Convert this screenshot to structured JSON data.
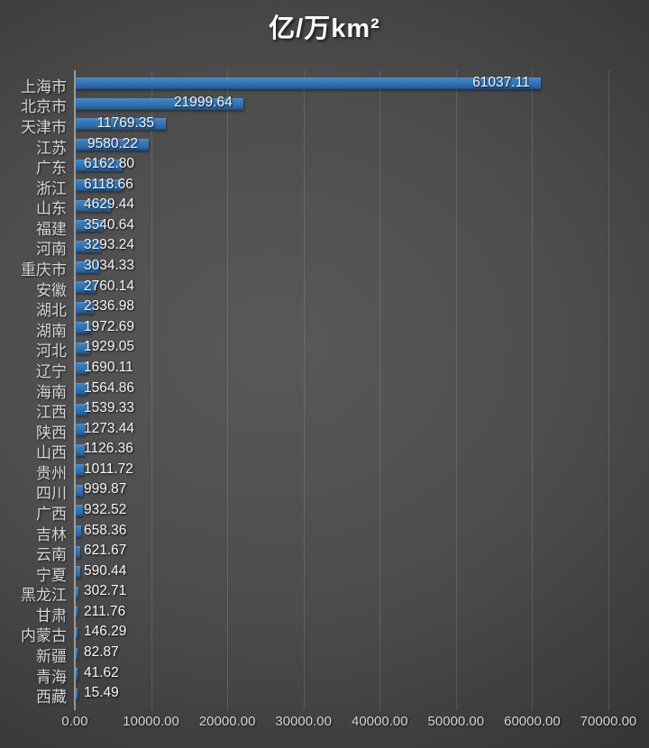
{
  "chart_data": {
    "type": "bar",
    "orientation": "horizontal",
    "title": "亿/万km²",
    "categories": [
      "上海市",
      "北京市",
      "天津市",
      "江苏",
      "广东",
      "浙江",
      "山东",
      "福建",
      "河南",
      "重庆市",
      "安徽",
      "湖北",
      "湖南",
      "河北",
      "辽宁",
      "海南",
      "江西",
      "陕西",
      "山西",
      "贵州",
      "四川",
      "广西",
      "吉林",
      "云南",
      "宁夏",
      "黑龙江",
      "甘肃",
      "内蒙古",
      "新疆",
      "青海",
      "西藏"
    ],
    "values": [
      61037.11,
      21999.64,
      11769.35,
      9580.22,
      6162.8,
      6118.66,
      4629.44,
      3540.64,
      3293.24,
      3034.33,
      2760.14,
      2336.98,
      1972.69,
      1929.05,
      1690.11,
      1564.86,
      1539.33,
      1273.44,
      1126.36,
      1011.72,
      999.87,
      932.52,
      658.36,
      621.67,
      590.44,
      302.71,
      211.76,
      146.29,
      82.87,
      41.62,
      15.49
    ],
    "value_label_decimals": 2,
    "value_label_position": "inside-end",
    "x_tick_labels": [
      "0.00",
      "10000.00",
      "20000.00",
      "30000.00",
      "40000.00",
      "50000.00",
      "60000.00",
      "70000.00"
    ],
    "xlim": [
      0,
      70000
    ],
    "grid": true,
    "legend": "none",
    "colors": {
      "bar_fill_top": "#5590c9",
      "bar_fill_mid": "#2f73b4",
      "bar_fill_bottom": "#1e4d7e",
      "background_center": "#595959",
      "background_edge": "#282828",
      "gridline": "#5e5e5e",
      "axis_line": "#b0b0b0",
      "category_text": "#d5d5d5",
      "value_text": "#f5f5f5",
      "tick_text": "#d2d2d2",
      "title_text": "#fbfbfb"
    }
  }
}
